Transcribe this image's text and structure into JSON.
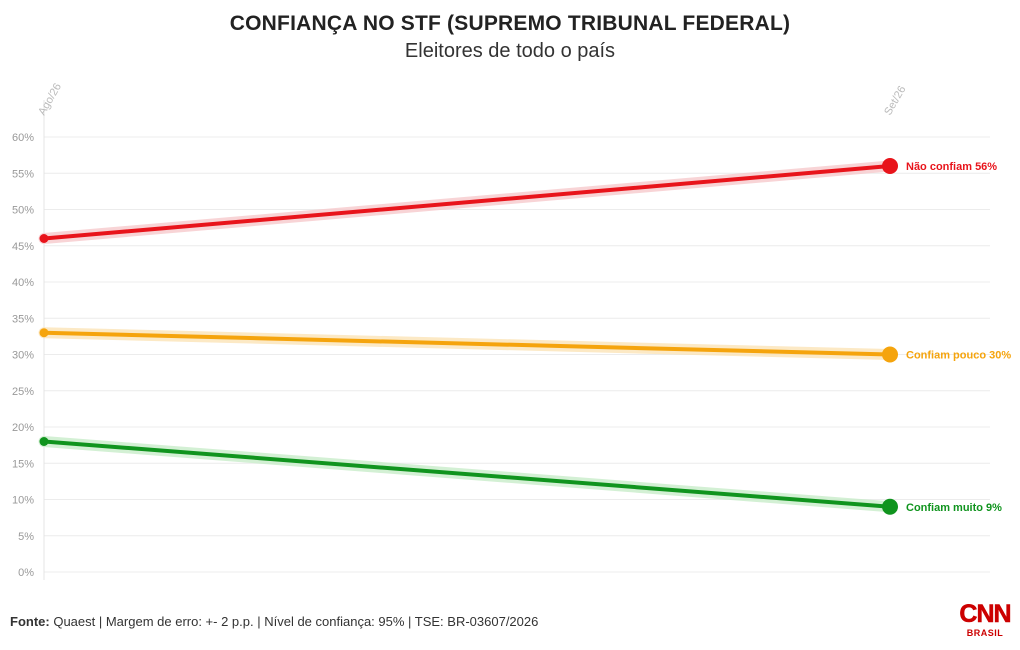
{
  "chart_data": {
    "type": "line",
    "title": "CONFIANÇA NO STF (SUPREMO TRIBUNAL FEDERAL)",
    "subtitle": "Eleitores de todo o país",
    "x": [
      "Ago/26",
      "Set/26"
    ],
    "ylim": [
      0,
      60
    ],
    "yticks": [
      "0%",
      "5%",
      "10%",
      "15%",
      "20%",
      "25%",
      "30%",
      "35%",
      "40%",
      "45%",
      "50%",
      "55%",
      "60%"
    ],
    "grid": true,
    "series": [
      {
        "name": "Não confiam",
        "values": [
          46,
          56
        ],
        "color": "#e8141b",
        "glow": "#f6c9cc",
        "label": "Não confiam 56%"
      },
      {
        "name": "Confiam pouco",
        "values": [
          33,
          30
        ],
        "color": "#f5a40d",
        "glow": "#fbe3b6",
        "label": "Confiam pouco 30%"
      },
      {
        "name": "Confiam muito",
        "values": [
          18,
          9
        ],
        "color": "#10941e",
        "glow": "#c8ecc9",
        "label": "Confiam muito 9%"
      }
    ]
  },
  "footer": {
    "source_label": "Fonte:",
    "source_text": "Quaest | Margem de erro: +- 2 p.p. | Nível de confiança: 95% | TSE: BR-03607/2026"
  },
  "logo": {
    "brand": "CNN",
    "sub": "BRASIL"
  }
}
